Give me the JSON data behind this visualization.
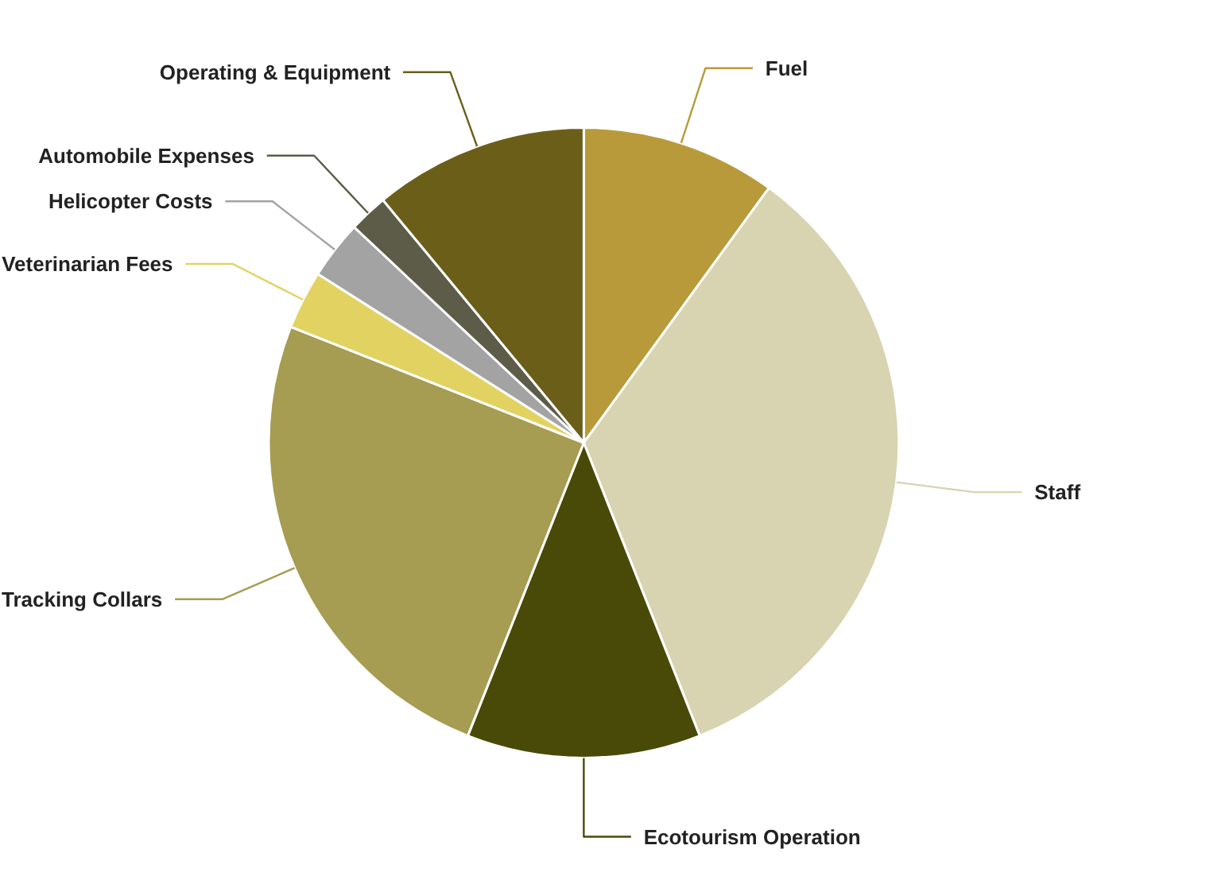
{
  "chart_data": {
    "type": "pie",
    "categories": [
      "Fuel",
      "Staff",
      "Ecotourism Operation",
      "Tracking Collars",
      "Veterinarian Fees",
      "Helicopter Costs",
      "Automobile Expenses",
      "Operating & Equipment"
    ],
    "values": [
      10,
      34,
      12,
      25,
      3,
      3,
      2,
      11
    ],
    "colors": [
      "#b89a3a",
      "#d8d3b0",
      "#4a4a08",
      "#a69c52",
      "#e2d262",
      "#a3a3a3",
      "#5c5c48",
      "#6b5e18"
    ]
  }
}
